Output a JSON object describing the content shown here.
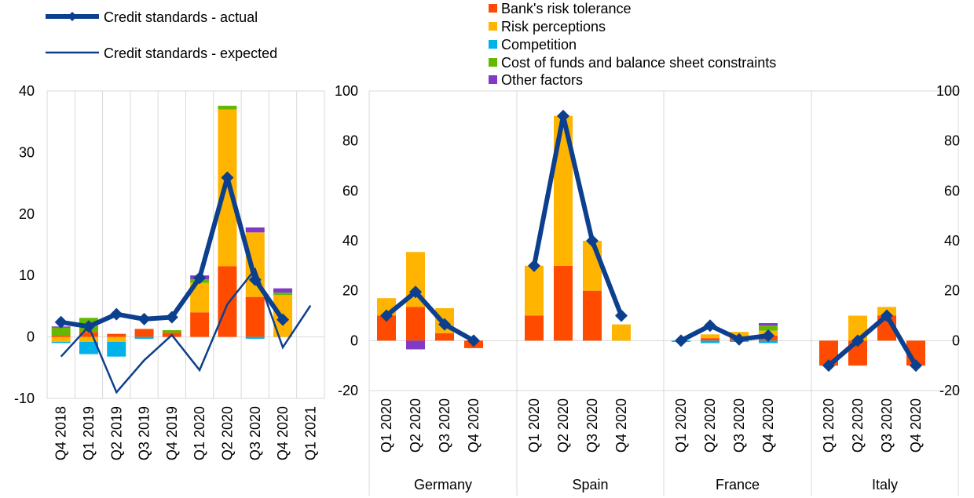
{
  "legend": {
    "lines": [
      {
        "name": "Credit standards - actual",
        "color": "#0d3f8f"
      },
      {
        "name": "Credit standards - expected",
        "color": "#0d3f8f"
      }
    ],
    "bars": [
      {
        "name": "Bank's risk tolerance",
        "color": "#ff4b00"
      },
      {
        "name": "Risk perceptions",
        "color": "#ffb400"
      },
      {
        "name": "Competition",
        "color": "#00b1ea"
      },
      {
        "name": "Cost of funds and balance sheet constraints",
        "color": "#65b800"
      },
      {
        "name": "Other factors",
        "color": "#8139c6"
      }
    ]
  },
  "chart_data": [
    {
      "type": "bar",
      "stacked": true,
      "title": "",
      "xlabel": "",
      "ylabel": "",
      "ylim": [
        -10,
        40
      ],
      "yticks": [
        -10,
        0,
        10,
        20,
        30,
        40
      ],
      "categories": [
        "Q4 2018",
        "Q1 2019",
        "Q2 2019",
        "Q3 2019",
        "Q4 2019",
        "Q1 2020",
        "Q2 2020",
        "Q3 2020",
        "Q4 2020",
        "Q1 2021"
      ],
      "series": [
        {
          "name": "Bank's risk tolerance",
          "values": [
            0.3,
            0.8,
            0.5,
            1.3,
            0.7,
            4.0,
            11.5,
            6.5,
            0.0,
            null
          ]
        },
        {
          "name": "Risk perceptions",
          "values": [
            -0.8,
            -0.8,
            -0.8,
            0.0,
            0.0,
            4.8,
            25.5,
            10.5,
            6.8,
            null
          ]
        },
        {
          "name": "Competition",
          "values": [
            -0.2,
            -2.0,
            -2.4,
            -0.3,
            0.0,
            0.0,
            0.0,
            -0.3,
            0.0,
            null
          ]
        },
        {
          "name": "Cost of funds and balance sheet constraints",
          "values": [
            1.2,
            2.3,
            0.0,
            0.0,
            0.4,
            0.6,
            0.6,
            0.0,
            0.4,
            null
          ]
        },
        {
          "name": "Other factors",
          "values": [
            0.2,
            0.0,
            0.0,
            0.0,
            0.0,
            0.6,
            0.0,
            0.8,
            0.7,
            null
          ]
        }
      ],
      "lines": [
        {
          "name": "Credit standards - actual",
          "values": [
            2.4,
            1.7,
            3.7,
            2.9,
            3.2,
            9.6,
            25.9,
            9.3,
            2.8,
            null
          ]
        },
        {
          "name": "Credit standards - expected",
          "values": [
            -3.2,
            1.7,
            -9.0,
            -3.8,
            0.3,
            -5.4,
            5.3,
            11.0,
            -1.7,
            5.1
          ]
        }
      ]
    },
    {
      "type": "bar",
      "stacked": true,
      "title": "",
      "xlabel": "",
      "ylabel": "",
      "ylim": [
        -20,
        100
      ],
      "yticks": [
        -20,
        0,
        20,
        40,
        60,
        80,
        100
      ],
      "groups": [
        {
          "name": "Germany",
          "categories": [
            "Q1 2020",
            "Q2 2020",
            "Q3 2020",
            "Q4 2020"
          ],
          "series": [
            {
              "name": "Bank's risk tolerance",
              "values": [
                10.0,
                13.5,
                3.0,
                -3.0
              ]
            },
            {
              "name": "Risk perceptions",
              "values": [
                7.0,
                22.0,
                10.0,
                0.0
              ]
            },
            {
              "name": "Competition",
              "values": [
                0.0,
                0.0,
                0.0,
                0.0
              ]
            },
            {
              "name": "Cost of funds and balance sheet constraints",
              "values": [
                0.0,
                0.0,
                0.0,
                0.0
              ]
            },
            {
              "name": "Other factors",
              "values": [
                0.0,
                -3.5,
                0.0,
                0.0
              ]
            }
          ],
          "actual": [
            10.0,
            19.5,
            6.5,
            0.0
          ]
        },
        {
          "name": "Spain",
          "categories": [
            "Q1 2020",
            "Q2 2020",
            "Q3 2020",
            "Q4 2020"
          ],
          "series": [
            {
              "name": "Bank's risk tolerance",
              "values": [
                10.0,
                30.0,
                20.0,
                0.0
              ]
            },
            {
              "name": "Risk perceptions",
              "values": [
                20.0,
                60.0,
                20.0,
                6.5
              ]
            },
            {
              "name": "Competition",
              "values": [
                0.0,
                0.0,
                0.0,
                0.0
              ]
            },
            {
              "name": "Cost of funds and balance sheet constraints",
              "values": [
                0.0,
                0.0,
                0.0,
                0.0
              ]
            },
            {
              "name": "Other factors",
              "values": [
                0.0,
                0.0,
                0.0,
                0.0
              ]
            }
          ],
          "actual": [
            30.0,
            90.0,
            40.0,
            10.0
          ]
        },
        {
          "name": "France",
          "categories": [
            "Q1 2020",
            "Q2 2020",
            "Q3 2020",
            "Q4 2020"
          ],
          "series": [
            {
              "name": "Bank's risk tolerance",
              "values": [
                0.0,
                1.0,
                1.5,
                2.0
              ]
            },
            {
              "name": "Risk perceptions",
              "values": [
                0.0,
                1.5,
                2.0,
                2.0
              ]
            },
            {
              "name": "Competition",
              "values": [
                -0.5,
                -1.0,
                -0.5,
                -1.0
              ]
            },
            {
              "name": "Cost of funds and balance sheet constraints",
              "values": [
                0.0,
                0.0,
                0.0,
                2.0
              ]
            },
            {
              "name": "Other factors",
              "values": [
                0.0,
                0.0,
                0.0,
                1.0
              ]
            }
          ],
          "actual": [
            0.0,
            6.0,
            0.5,
            2.0
          ]
        },
        {
          "name": "Italy",
          "categories": [
            "Q1 2020",
            "Q2 2020",
            "Q3 2020",
            "Q4 2020"
          ],
          "series": [
            {
              "name": "Bank's risk tolerance",
              "values": [
                -10.0,
                -10.0,
                10.0,
                -10.0
              ]
            },
            {
              "name": "Risk perceptions",
              "values": [
                0.0,
                10.0,
                3.5,
                0.0
              ]
            },
            {
              "name": "Competition",
              "values": [
                0.0,
                0.0,
                0.0,
                0.0
              ]
            },
            {
              "name": "Cost of funds and balance sheet constraints",
              "values": [
                0.0,
                0.0,
                0.0,
                0.0
              ]
            },
            {
              "name": "Other factors",
              "values": [
                0.0,
                0.0,
                0.0,
                0.0
              ]
            }
          ],
          "actual": [
            -10.0,
            0.0,
            10.0,
            -10.0
          ]
        }
      ]
    }
  ]
}
